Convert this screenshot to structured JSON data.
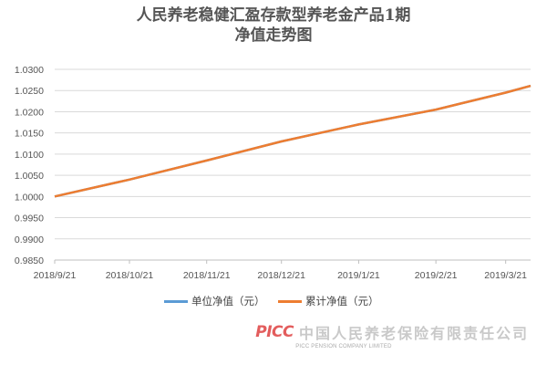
{
  "chart_data": {
    "type": "line",
    "title_line1": "人民养老稳健汇盈存款型养老金产品1期",
    "title_line2": "净值走势图",
    "x_tick_labels": [
      "2018/9/21",
      "2018/10/21",
      "2018/11/21",
      "2018/12/21",
      "2019/1/21",
      "2019/2/21",
      "2019/3/21"
    ],
    "x_tick_dates": [
      "2018-09-21",
      "2018-10-21",
      "2018-11-21",
      "2018-12-21",
      "2019-01-21",
      "2019-02-21",
      "2019-03-21"
    ],
    "x_range": [
      "2018-09-21",
      "2019-03-31"
    ],
    "ylim": [
      0.985,
      1.03
    ],
    "y_ticks": [
      "0.9850",
      "0.9900",
      "0.9950",
      "1.0000",
      "1.0050",
      "1.0100",
      "1.0150",
      "1.0200",
      "1.0250",
      "1.0300"
    ],
    "grid": "horizontal",
    "legend_position": "bottom",
    "series": [
      {
        "name": "单位净值（元）",
        "color": "#5b9bd5",
        "points": [
          [
            "2018-09-21",
            1.0
          ],
          [
            "2018-10-21",
            1.004
          ],
          [
            "2018-11-21",
            1.0085
          ],
          [
            "2018-12-21",
            1.013
          ],
          [
            "2019-01-21",
            1.017
          ],
          [
            "2019-02-21",
            1.0205
          ],
          [
            "2019-03-21",
            1.0245
          ],
          [
            "2019-03-31",
            1.0261
          ]
        ]
      },
      {
        "name": "累计净值（元）",
        "color": "#ed7d31",
        "points": [
          [
            "2018-09-21",
            1.0
          ],
          [
            "2018-10-21",
            1.004
          ],
          [
            "2018-11-21",
            1.0085
          ],
          [
            "2018-12-21",
            1.013
          ],
          [
            "2019-01-21",
            1.017
          ],
          [
            "2019-02-21",
            1.0205
          ],
          [
            "2019-03-21",
            1.0245
          ],
          [
            "2019-03-31",
            1.0261
          ]
        ]
      }
    ]
  },
  "footer": {
    "logo_text": "PICC",
    "company_cn": "中国人民养老保险有限责任公司",
    "company_en": "PICC PENSION COMPANY LIMITED"
  }
}
